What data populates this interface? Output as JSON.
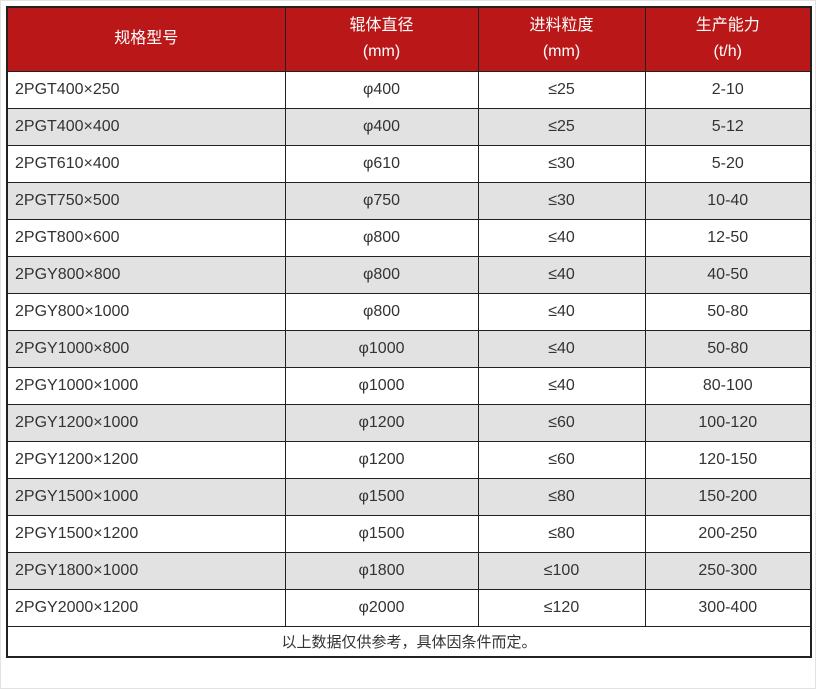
{
  "colors": {
    "header_bg": "#ba1818",
    "header_text": "#ffffff",
    "row_alt_bg": "#e2e2e2",
    "border": "#212121",
    "text": "#333333"
  },
  "table": {
    "columns": [
      {
        "title": "规格型号",
        "subtitle": ""
      },
      {
        "title": "辊体直径",
        "subtitle": "(mm)"
      },
      {
        "title": "进料粒度",
        "subtitle": "(mm)"
      },
      {
        "title": "生产能力",
        "subtitle": "(t/h)"
      }
    ],
    "rows": [
      {
        "model": "2PGT400×250",
        "diameter": "φ400",
        "feed_size": "≤25",
        "capacity": "2-10"
      },
      {
        "model": "2PGT400×400",
        "diameter": "φ400",
        "feed_size": "≤25",
        "capacity": "5-12"
      },
      {
        "model": "2PGT610×400",
        "diameter": "φ610",
        "feed_size": "≤30",
        "capacity": "5-20"
      },
      {
        "model": "2PGT750×500",
        "diameter": "φ750",
        "feed_size": "≤30",
        "capacity": "10-40"
      },
      {
        "model": "2PGT800×600",
        "diameter": "φ800",
        "feed_size": "≤40",
        "capacity": "12-50"
      },
      {
        "model": "2PGY800×800",
        "diameter": "φ800",
        "feed_size": "≤40",
        "capacity": "40-50"
      },
      {
        "model": "2PGY800×1000",
        "diameter": "φ800",
        "feed_size": "≤40",
        "capacity": "50-80"
      },
      {
        "model": "2PGY1000×800",
        "diameter": "φ1000",
        "feed_size": "≤40",
        "capacity": "50-80"
      },
      {
        "model": "2PGY1000×1000",
        "diameter": "φ1000",
        "feed_size": "≤40",
        "capacity": "80-100"
      },
      {
        "model": "2PGY1200×1000",
        "diameter": "φ1200",
        "feed_size": "≤60",
        "capacity": "100-120"
      },
      {
        "model": "2PGY1200×1200",
        "diameter": "φ1200",
        "feed_size": "≤60",
        "capacity": "120-150"
      },
      {
        "model": "2PGY1500×1000",
        "diameter": "φ1500",
        "feed_size": "≤80",
        "capacity": "150-200"
      },
      {
        "model": "2PGY1500×1200",
        "diameter": "φ1500",
        "feed_size": "≤80",
        "capacity": "200-250"
      },
      {
        "model": "2PGY1800×1000",
        "diameter": "φ1800",
        "feed_size": "≤100",
        "capacity": "250-300"
      },
      {
        "model": "2PGY2000×1200",
        "diameter": "φ2000",
        "feed_size": "≤120",
        "capacity": "300-400"
      }
    ],
    "footer_note": "以上数据仅供参考，具体因条件而定。"
  }
}
